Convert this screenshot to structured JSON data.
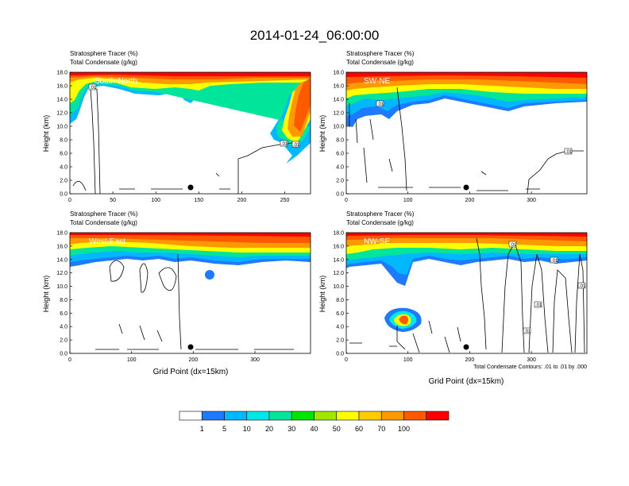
{
  "title": "2014-01-24_06:00:00",
  "panel_header": {
    "line1": "Stratosphere Tracer   (%)",
    "line2": "Total Condensate   (g/kg)"
  },
  "y_axis_label": "Height (km)",
  "x_axis_label": "Grid Point (dx=15km)",
  "contour_note": "Total Condensate Contours: .01 to .01 by .000",
  "contour_label": ".01",
  "colorbar": {
    "levels": [
      "1",
      "5",
      "10",
      "20",
      "30",
      "40",
      "50",
      "60",
      "70",
      "100"
    ],
    "colors": [
      "#ffffff",
      "#1e7bff",
      "#00b8ff",
      "#00e8e8",
      "#00e59a",
      "#00e600",
      "#a0e600",
      "#ffff00",
      "#ffcc00",
      "#ff9900",
      "#ff5a00",
      "#ff0000"
    ]
  },
  "chart_data": [
    {
      "type": "heatmap",
      "label": "South-North",
      "xticks": [
        "0",
        "50",
        "100",
        "150",
        "200",
        "250"
      ],
      "xlim": [
        0,
        280
      ],
      "ylim": [
        0,
        18
      ],
      "yticks": [
        "0.0",
        "2.0",
        "4.0",
        "6.0",
        "8.0",
        "10.0",
        "12.0",
        "14.0",
        "16.0",
        "18.0"
      ],
      "contour_labels": [
        ".01",
        ".01",
        ".01"
      ]
    },
    {
      "type": "heatmap",
      "label": "SW-NE",
      "xticks": [
        "0",
        "100",
        "200",
        "300"
      ],
      "xlim": [
        0,
        390
      ],
      "ylim": [
        0,
        18
      ],
      "yticks": [
        "0.0",
        "2.0",
        "4.0",
        "6.0",
        "8.0",
        "10.0",
        "12.0",
        "14.0",
        "16.0",
        "18.0"
      ],
      "contour_labels": [
        ".01",
        ".01"
      ]
    },
    {
      "type": "heatmap",
      "label": "West-East",
      "xticks": [
        "0",
        "100",
        "200",
        "300"
      ],
      "xlim": [
        0,
        390
      ],
      "ylim": [
        0,
        18
      ],
      "yticks": [
        "0.0",
        "2.0",
        "4.0",
        "6.0",
        "8.0",
        "10.0",
        "12.0",
        "14.0",
        "16.0",
        "18.0"
      ],
      "contour_labels": [
        ".01"
      ]
    },
    {
      "type": "heatmap",
      "label": "NW-SE",
      "xticks": [
        "0",
        "100",
        "200",
        "300"
      ],
      "xlim": [
        0,
        390
      ],
      "ylim": [
        0,
        18
      ],
      "yticks": [
        "0.0",
        "2.0",
        "4.0",
        "6.0",
        "8.0",
        "10.0",
        "12.0",
        "14.0",
        "16.0",
        "18.0"
      ],
      "contour_labels": [
        ".01",
        ".01",
        ".01",
        ".01",
        ".01"
      ]
    }
  ]
}
